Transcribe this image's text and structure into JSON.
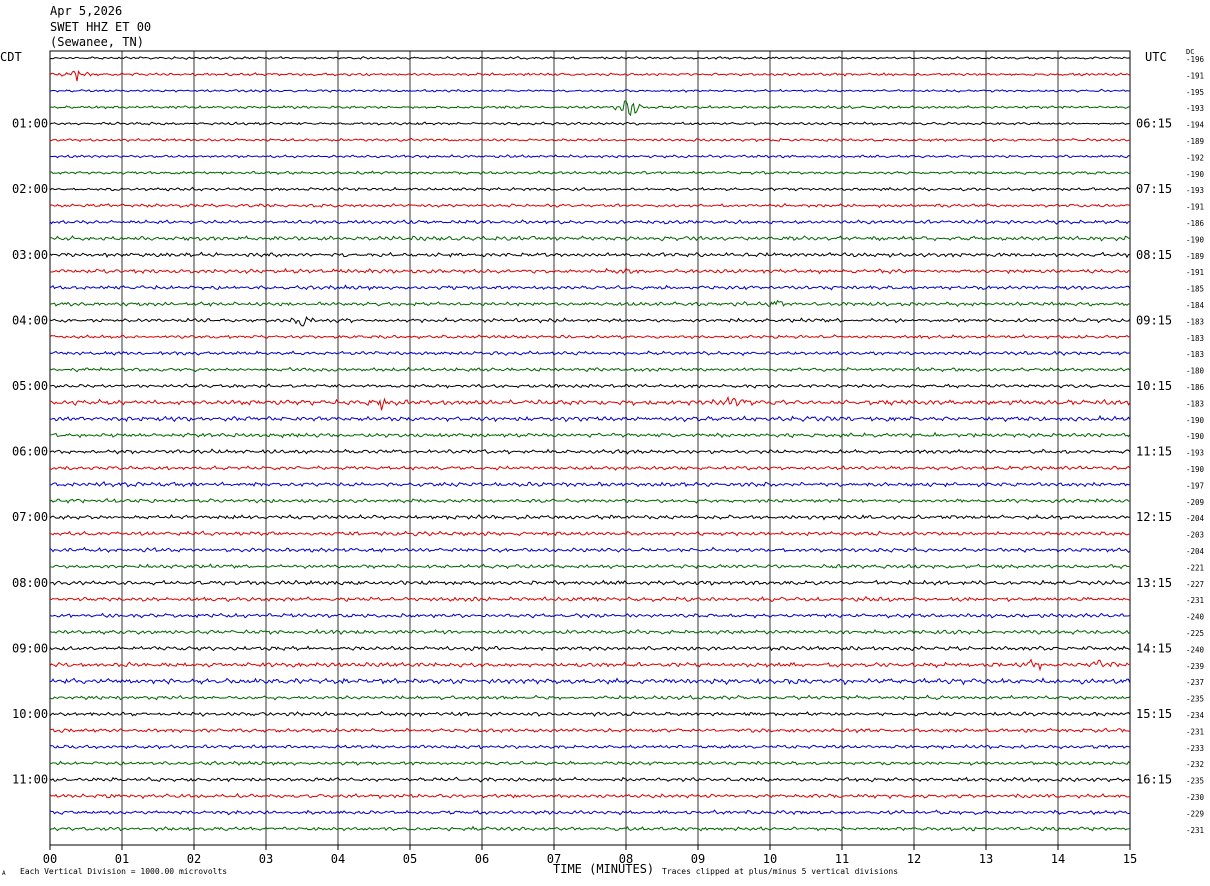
{
  "header": {
    "date": "Apr 5,2026",
    "station": "SWET HHZ ET 00",
    "location": "(Sewanee, TN)"
  },
  "chart_data": {
    "type": "line",
    "left_axis_label": "CDT",
    "right_axis_label": "UTC",
    "dc_label": "DC",
    "xlabel": "TIME (MINUTES)",
    "x_ticks": [
      "00",
      "01",
      "02",
      "03",
      "04",
      "05",
      "06",
      "07",
      "08",
      "09",
      "10",
      "11",
      "12",
      "13",
      "14",
      "15"
    ],
    "xlim": [
      0,
      15
    ],
    "left_time_labels": [
      {
        "row": 4,
        "text": "01:00"
      },
      {
        "row": 8,
        "text": "02:00"
      },
      {
        "row": 12,
        "text": "03:00"
      },
      {
        "row": 16,
        "text": "04:00"
      },
      {
        "row": 20,
        "text": "05:00"
      },
      {
        "row": 24,
        "text": "06:00"
      },
      {
        "row": 28,
        "text": "07:00"
      },
      {
        "row": 32,
        "text": "08:00"
      },
      {
        "row": 36,
        "text": "09:00"
      },
      {
        "row": 40,
        "text": "10:00"
      },
      {
        "row": 44,
        "text": "11:00"
      }
    ],
    "right_time_labels": [
      {
        "row": 4,
        "text": "06:15"
      },
      {
        "row": 8,
        "text": "07:15"
      },
      {
        "row": 12,
        "text": "08:15"
      },
      {
        "row": 16,
        "text": "09:15"
      },
      {
        "row": 20,
        "text": "10:15"
      },
      {
        "row": 24,
        "text": "11:15"
      },
      {
        "row": 28,
        "text": "12:15"
      },
      {
        "row": 32,
        "text": "13:15"
      },
      {
        "row": 36,
        "text": "14:15"
      },
      {
        "row": 40,
        "text": "15:15"
      },
      {
        "row": 44,
        "text": "16:15"
      }
    ],
    "dc_offsets": [
      "-196",
      "-191",
      "-195",
      "-193",
      "-194",
      "-189",
      "-192",
      "-190",
      "-193",
      "-191",
      "-186",
      "-190",
      "-189",
      "-191",
      "-185",
      "-184",
      "-183",
      "-183",
      "-183",
      "-180",
      "-186",
      "-183",
      "-190",
      "-190",
      "-193",
      "-190",
      "-197",
      "-209",
      "-204",
      "-203",
      "-204",
      "-221",
      "-227",
      "-231",
      "-240",
      "-225",
      "-240",
      "-239",
      "-237",
      "-235",
      "-234",
      "-231",
      "-233",
      "-232",
      "-235",
      "-230",
      "-229",
      "-231"
    ],
    "trace_colors": [
      "#000000",
      "#dd0000",
      "#0000cc",
      "#006600"
    ],
    "trace_amplitude_rows": [
      0.9,
      1.0,
      0.9,
      1.0,
      1.0,
      1.0,
      1.0,
      1.1,
      1.1,
      1.2,
      1.3,
      1.6,
      1.5,
      1.5,
      1.4,
      1.4,
      1.4,
      1.2,
      1.3,
      1.3,
      1.3,
      1.8,
      1.7,
      1.5,
      1.5,
      1.4,
      1.6,
      1.4,
      1.5,
      1.5,
      1.5,
      1.4,
      1.6,
      1.5,
      1.5,
      1.5,
      1.5,
      1.6,
      2.0,
      1.4,
      1.4,
      1.4,
      1.3,
      1.3,
      1.4,
      1.4,
      1.4,
      1.4
    ],
    "events": [
      {
        "row": 1,
        "minute": 0.4,
        "amplitude": 6
      },
      {
        "row": 3,
        "minute": 8.05,
        "amplitude": 14
      },
      {
        "row": 13,
        "minute": 8.0,
        "amplitude": 5
      },
      {
        "row": 15,
        "minute": 10.1,
        "amplitude": 5
      },
      {
        "row": 16,
        "minute": 3.5,
        "amplitude": 5
      },
      {
        "row": 21,
        "minute": 4.6,
        "amplitude": 6
      },
      {
        "row": 21,
        "minute": 9.5,
        "amplitude": 5
      },
      {
        "row": 37,
        "minute": 13.7,
        "amplitude": 6
      },
      {
        "row": 37,
        "minute": 14.6,
        "amplitude": 5
      }
    ],
    "footer_left": "Each Vertical Division = 1000.00 microvolts",
    "footer_right": "Traces clipped at plus/minus 5 vertical divisions",
    "corner_mark": "A"
  }
}
